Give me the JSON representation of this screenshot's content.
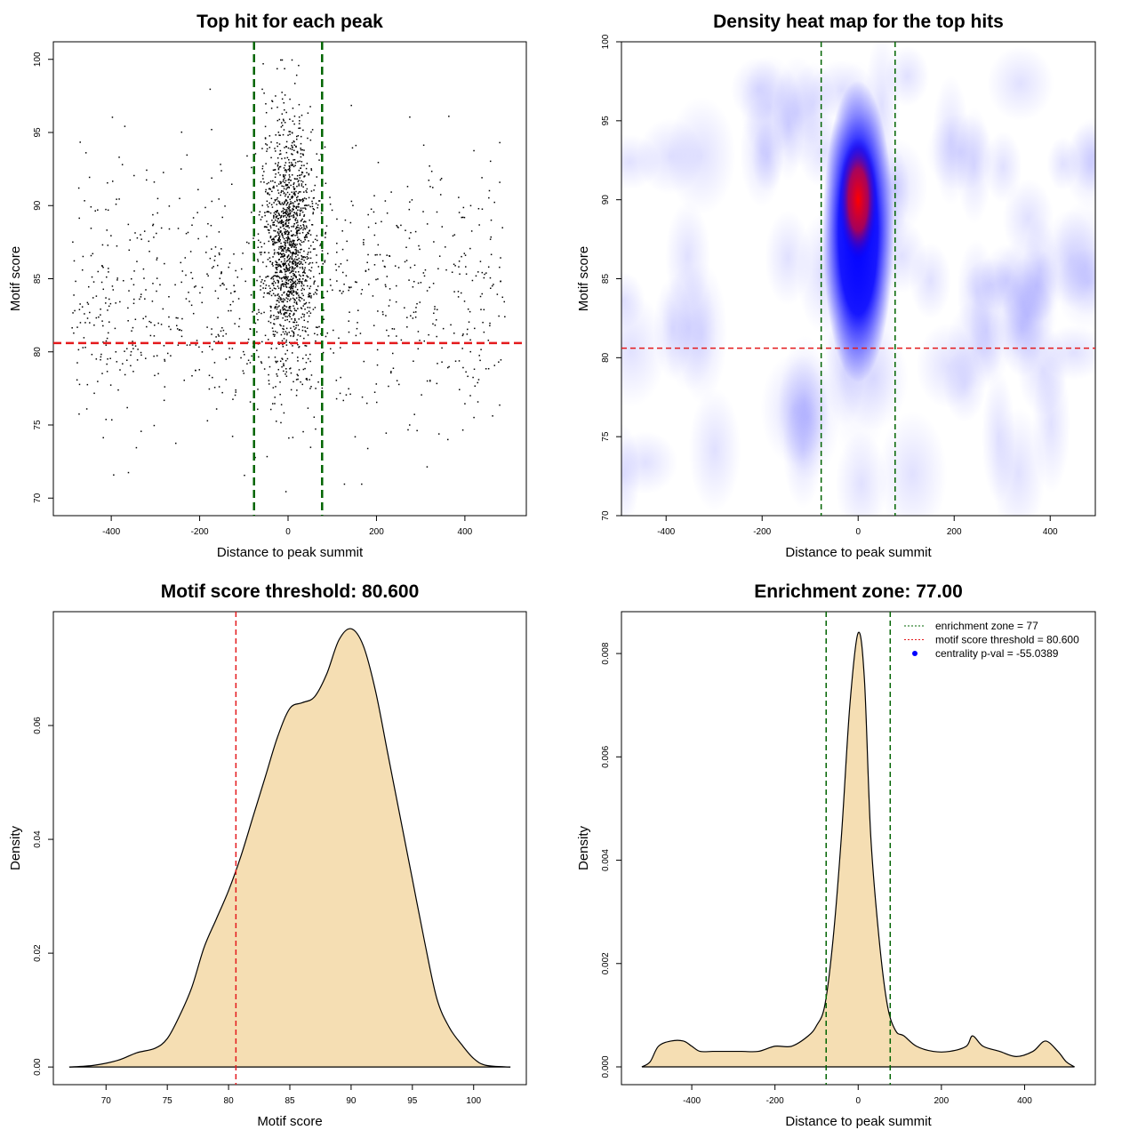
{
  "chart_data": [
    {
      "type": "scatter",
      "title": "Top hit for each peak",
      "xlabel": "Distance to peak summit",
      "ylabel": "Motif score",
      "xlim": [
        -531,
        539
      ],
      "ylim": [
        68.8,
        101.2
      ],
      "xticks": [
        -400,
        -200,
        0,
        200,
        400
      ],
      "yticks": [
        70,
        75,
        80,
        85,
        90,
        95,
        100
      ],
      "vlines": [
        -77,
        77
      ],
      "hline": 80.6,
      "vline_color": "#006400",
      "hline_color": "#e41a1c",
      "points": {
        "seed": 7,
        "central": {
          "n": 1400,
          "x_mean": 0,
          "x_sd": 28,
          "y_mean": 87.5,
          "y_sd": 4.2,
          "y_min": 70,
          "y_max": 100
        },
        "background": {
          "n": 900,
          "x_range": [
            -490,
            490
          ],
          "y_mean": 84,
          "y_sd": 4.5,
          "y_min": 71,
          "y_max": 98
        }
      }
    },
    {
      "type": "heatmap",
      "title": "Density heat map for the top hits",
      "xlabel": "Distance to peak summit",
      "ylabel": "Motif score",
      "xlim": [
        -493,
        494
      ],
      "ylim": [
        70,
        100
      ],
      "xticks": [
        -400,
        -200,
        0,
        200,
        400
      ],
      "yticks": [
        70,
        75,
        80,
        85,
        90,
        95,
        100
      ],
      "vlines": [
        -77,
        77
      ],
      "hline": 80.6,
      "peak": {
        "x": 0,
        "y": 90
      },
      "colors": [
        "#ffffff",
        "#0000ff",
        "#ff0000"
      ]
    },
    {
      "type": "area",
      "title": "Motif score threshold: 80.600",
      "xlabel": "Motif score",
      "ylabel": "Density",
      "xlim": [
        65.7,
        104.3
      ],
      "ylim": [
        -0.0031,
        0.08
      ],
      "xticks": [
        70,
        75,
        80,
        85,
        90,
        95,
        100
      ],
      "yticks": [
        "0.00",
        "0.02",
        "0.04",
        "0.06"
      ],
      "vline": 80.6,
      "fill": "#f5deb3",
      "x": [
        67,
        69,
        71,
        72.5,
        74,
        75,
        76,
        77,
        78,
        79,
        80,
        81,
        82,
        83,
        84,
        85,
        86,
        87,
        88,
        89,
        90,
        91,
        92,
        93,
        94,
        95,
        96,
        97,
        98,
        99,
        100,
        101,
        103
      ],
      "y": [
        0,
        0.0003,
        0.0012,
        0.0025,
        0.0033,
        0.005,
        0.009,
        0.014,
        0.021,
        0.026,
        0.031,
        0.037,
        0.044,
        0.051,
        0.058,
        0.063,
        0.064,
        0.065,
        0.069,
        0.075,
        0.077,
        0.074,
        0.066,
        0.055,
        0.044,
        0.033,
        0.022,
        0.012,
        0.007,
        0.004,
        0.0015,
        0.0003,
        0
      ]
    },
    {
      "type": "area",
      "title": "Enrichment zone: 77.00",
      "xlabel": "Distance to peak summit",
      "ylabel": "Density",
      "xlim": [
        -569,
        570
      ],
      "ylim": [
        -0.000344,
        0.00881
      ],
      "xticks": [
        -400,
        -200,
        0,
        200,
        400
      ],
      "yticks": [
        "0.000",
        "0.002",
        "0.004",
        "0.006",
        "0.008"
      ],
      "vlines": [
        -77,
        77
      ],
      "fill": "#f5deb3",
      "x": [
        -520,
        -500,
        -480,
        -450,
        -420,
        -400,
        -380,
        -350,
        -320,
        -280,
        -240,
        -200,
        -160,
        -120,
        -100,
        -80,
        -60,
        -40,
        -20,
        0,
        15,
        30,
        50,
        70,
        90,
        110,
        140,
        180,
        220,
        260,
        275,
        300,
        340,
        380,
        420,
        450,
        480,
        500,
        520
      ],
      "y": [
        0,
        0.0001,
        0.0004,
        0.0005,
        0.0005,
        0.0004,
        0.0003,
        0.0003,
        0.0003,
        0.0003,
        0.0003,
        0.0004,
        0.0004,
        0.0006,
        0.0008,
        0.0012,
        0.0025,
        0.0045,
        0.007,
        0.0084,
        0.0075,
        0.0045,
        0.0025,
        0.0012,
        0.0007,
        0.0006,
        0.0004,
        0.0003,
        0.0003,
        0.0004,
        0.0006,
        0.0004,
        0.0003,
        0.0002,
        0.0003,
        0.0005,
        0.0003,
        0.0001,
        0
      ],
      "legend": [
        {
          "label": "enrichment zone = 77",
          "color": "#006400",
          "style": "dotted-line"
        },
        {
          "label": "motif score threshold = 80.600",
          "color": "#e41a1c",
          "style": "dotted-line"
        },
        {
          "label": "centrality p-val = -55.0389",
          "color": "#0000ff",
          "style": "dot"
        }
      ],
      "legend_position": "top-right"
    }
  ]
}
